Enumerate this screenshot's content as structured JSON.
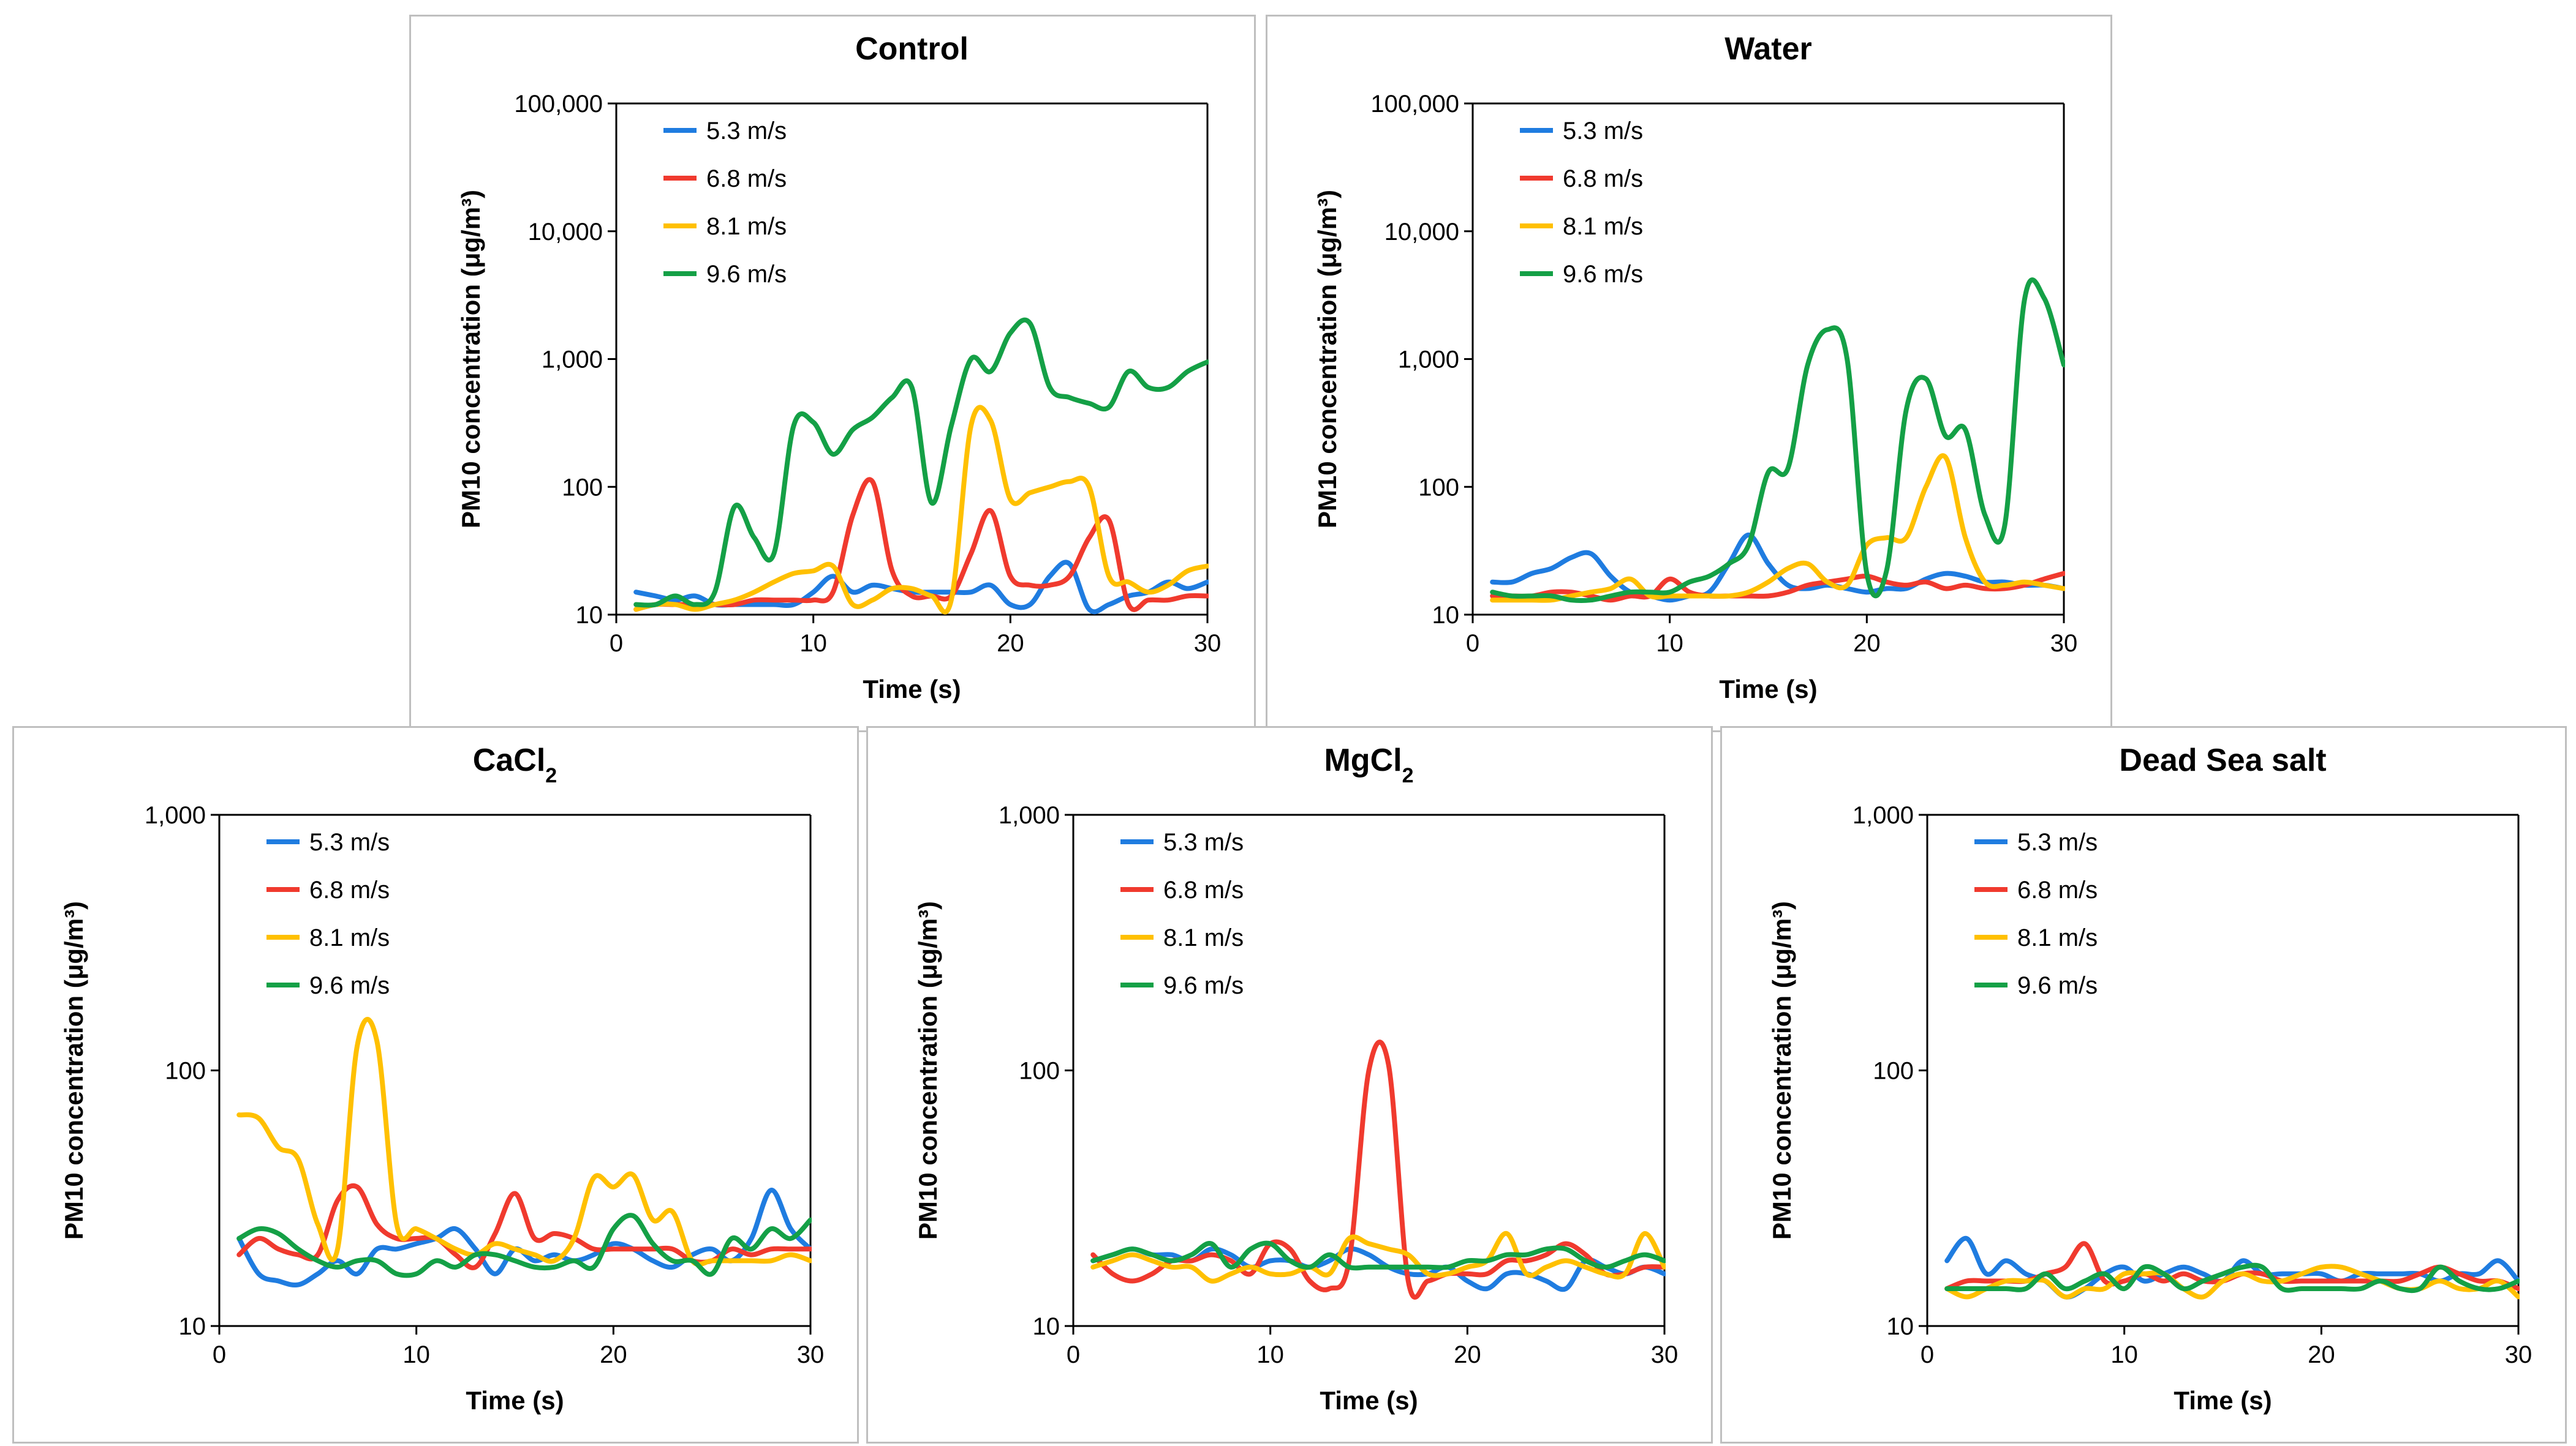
{
  "series_colors": {
    "5.3 m/s": "#1f7ce0",
    "6.8 m/s": "#f03a2e",
    "8.1 m/s": "#ffc000",
    "9.6 m/s": "#14a046"
  },
  "chart_data": [
    {
      "type": "line",
      "yscale": "log",
      "title": "Control",
      "xlabel": "Time (s)",
      "ylabel": "PM10 concentration (μg/m³)",
      "xlim": [
        0,
        30
      ],
      "ylim": [
        10,
        100000
      ],
      "xticks": [
        "0",
        "10",
        "20",
        "30"
      ],
      "yticks": [
        {
          "v": 10,
          "t": "10"
        },
        {
          "v": 100,
          "t": "100"
        },
        {
          "v": 1000,
          "t": "1,000"
        },
        {
          "v": 10000,
          "t": "10,000"
        },
        {
          "v": 100000,
          "t": "100,000"
        }
      ],
      "x": [
        1,
        2,
        3,
        4,
        5,
        6,
        7,
        8,
        9,
        10,
        11,
        12,
        13,
        14,
        15,
        16,
        17,
        18,
        19,
        20,
        21,
        22,
        23,
        24,
        25,
        26,
        27,
        28,
        29,
        30
      ],
      "series": [
        {
          "name": "5.3 m/s",
          "values": [
            15,
            14,
            13,
            14,
            12,
            12,
            12,
            12,
            12,
            15,
            20,
            15,
            17,
            16,
            15,
            15,
            15,
            15,
            17,
            12,
            12,
            20,
            25,
            11,
            12,
            14,
            15,
            18,
            16,
            18
          ]
        },
        {
          "name": "6.8 m/s",
          "values": [
            11,
            12,
            12,
            12,
            12,
            12,
            13,
            13,
            13,
            13,
            15,
            60,
            110,
            22,
            14,
            14,
            14,
            30,
            65,
            20,
            17,
            17,
            20,
            40,
            55,
            12,
            13,
            13,
            14,
            14
          ]
        },
        {
          "name": "8.1 m/s",
          "values": [
            11,
            12,
            12,
            11,
            12,
            13,
            15,
            18,
            21,
            22,
            24,
            12,
            13,
            16,
            16,
            14,
            13,
            300,
            330,
            80,
            90,
            100,
            110,
            100,
            20,
            18,
            15,
            17,
            22,
            24
          ]
        },
        {
          "name": "9.6 m/s",
          "values": [
            12,
            12,
            14,
            12,
            15,
            70,
            40,
            30,
            300,
            320,
            180,
            280,
            350,
            500,
            600,
            75,
            300,
            1000,
            800,
            1600,
            1900,
            600,
            500,
            450,
            420,
            800,
            600,
            600,
            800,
            950
          ]
        }
      ]
    },
    {
      "type": "line",
      "yscale": "log",
      "title": "Water",
      "xlabel": "Time (s)",
      "ylabel": "PM10 concentration (μg/m³)",
      "xlim": [
        0,
        30
      ],
      "ylim": [
        10,
        100000
      ],
      "xticks": [
        "0",
        "10",
        "20",
        "30"
      ],
      "yticks": [
        {
          "v": 10,
          "t": "10"
        },
        {
          "v": 100,
          "t": "100"
        },
        {
          "v": 1000,
          "t": "1,000"
        },
        {
          "v": 10000,
          "t": "10,000"
        },
        {
          "v": 100000,
          "t": "100,000"
        }
      ],
      "x": [
        1,
        2,
        3,
        4,
        5,
        6,
        7,
        8,
        9,
        10,
        11,
        12,
        13,
        14,
        15,
        16,
        17,
        18,
        19,
        20,
        21,
        22,
        23,
        24,
        25,
        26,
        27,
        28,
        29,
        30
      ],
      "series": [
        {
          "name": "5.3 m/s",
          "values": [
            18,
            18,
            21,
            23,
            28,
            30,
            20,
            15,
            14,
            13,
            14,
            15,
            25,
            42,
            25,
            17,
            16,
            17,
            16,
            15,
            16,
            16,
            19,
            21,
            20,
            18,
            18,
            17,
            17,
            16
          ]
        },
        {
          "name": "6.8 m/s",
          "values": [
            14,
            14,
            14,
            15,
            15,
            14,
            13,
            14,
            14,
            19,
            15,
            14,
            14,
            14,
            14,
            15,
            17,
            18,
            19,
            20,
            18,
            17,
            18,
            16,
            17,
            16,
            16,
            17,
            19,
            21
          ]
        },
        {
          "name": "8.1 m/s",
          "values": [
            13,
            13,
            13,
            13,
            14,
            15,
            16,
            19,
            14,
            14,
            14,
            14,
            14,
            15,
            18,
            23,
            25,
            18,
            17,
            35,
            40,
            40,
            100,
            170,
            40,
            18,
            17,
            18,
            17,
            16
          ]
        },
        {
          "name": "9.6 m/s",
          "values": [
            15,
            14,
            14,
            14,
            13,
            13,
            14,
            15,
            15,
            15,
            18,
            20,
            25,
            35,
            130,
            140,
            900,
            1700,
            1000,
            21,
            22,
            400,
            700,
            250,
            280,
            60,
            50,
            2900,
            3000,
            900
          ]
        }
      ]
    },
    {
      "type": "line",
      "yscale": "log",
      "title": "CaCl",
      "title_sub": "2",
      "xlabel": "Time (s)",
      "ylabel": "PM10 concentration (μg/m³)",
      "xlim": [
        0,
        30
      ],
      "ylim": [
        10,
        1000
      ],
      "xticks": [
        "0",
        "10",
        "20",
        "30"
      ],
      "yticks": [
        {
          "v": 10,
          "t": "10"
        },
        {
          "v": 100,
          "t": "100"
        },
        {
          "v": 1000,
          "t": "1,000"
        }
      ],
      "x": [
        1,
        2,
        3,
        4,
        5,
        6,
        7,
        8,
        9,
        10,
        11,
        12,
        13,
        14,
        15,
        16,
        17,
        18,
        19,
        20,
        21,
        22,
        23,
        24,
        25,
        26,
        27,
        28,
        29,
        30
      ],
      "series": [
        {
          "name": "5.3 m/s",
          "values": [
            22,
            16,
            15,
            14.5,
            16,
            18,
            16,
            20,
            20,
            21,
            22,
            24,
            20,
            16,
            20,
            18,
            19,
            18,
            19,
            21,
            20,
            18,
            17,
            19,
            20,
            18,
            22,
            34,
            24,
            20
          ]
        },
        {
          "name": "6.8 m/s",
          "values": [
            19,
            22,
            20,
            19,
            19,
            31,
            35,
            25,
            22,
            22,
            22,
            19,
            17,
            23,
            33,
            22,
            23,
            22,
            20,
            20,
            20,
            20,
            20,
            18,
            18,
            20,
            19,
            20,
            20,
            20
          ]
        },
        {
          "name": "8.1 m/s",
          "values": [
            67,
            65,
            50,
            45,
            25,
            20,
            125,
            130,
            25,
            24,
            22,
            20,
            19,
            21,
            20,
            19,
            18,
            22,
            38,
            35,
            39,
            26,
            28,
            18,
            18,
            18,
            18,
            18,
            19,
            18
          ]
        },
        {
          "name": "9.6 m/s",
          "values": [
            22,
            24,
            23,
            20,
            18,
            17,
            18,
            18,
            16,
            16,
            18,
            17,
            19,
            19,
            18,
            17,
            17,
            18,
            17,
            24,
            27,
            21,
            18,
            18,
            16,
            22,
            20,
            24,
            22,
            26
          ]
        }
      ]
    },
    {
      "type": "line",
      "yscale": "log",
      "title": "MgCl",
      "title_sub": "2",
      "xlabel": "Time (s)",
      "ylabel": "PM10 concentration (μg/m³)",
      "xlim": [
        0,
        30
      ],
      "ylim": [
        10,
        1000
      ],
      "xticks": [
        "0",
        "10",
        "20",
        "30"
      ],
      "yticks": [
        {
          "v": 10,
          "t": "10"
        },
        {
          "v": 100,
          "t": "100"
        },
        {
          "v": 1000,
          "t": "1,000"
        }
      ],
      "x": [
        1,
        2,
        3,
        4,
        5,
        6,
        7,
        8,
        9,
        10,
        11,
        12,
        13,
        14,
        15,
        16,
        17,
        18,
        19,
        20,
        21,
        22,
        23,
        24,
        25,
        26,
        27,
        28,
        29,
        30
      ],
      "series": [
        {
          "name": "5.3 m/s",
          "values": [
            18,
            19,
            20,
            19,
            19,
            18,
            20,
            19,
            17,
            18,
            18,
            17,
            18,
            20,
            19,
            17,
            16,
            16,
            17,
            15,
            14,
            16,
            16,
            15,
            14,
            18,
            17,
            16,
            17,
            16
          ]
        },
        {
          "name": "6.8 m/s",
          "values": [
            19,
            16,
            15,
            16,
            18,
            18,
            19,
            18,
            16,
            21,
            20,
            15,
            14,
            18,
            100,
            105,
            15,
            15,
            16,
            16,
            16,
            18,
            18,
            19,
            21,
            19,
            16,
            16,
            17,
            17
          ]
        },
        {
          "name": "8.1 m/s",
          "values": [
            17,
            18,
            19,
            18,
            17,
            17,
            15,
            16,
            17,
            16,
            16,
            17,
            16,
            22,
            21,
            20,
            19,
            16,
            16,
            17,
            18,
            23,
            16,
            17,
            18,
            17,
            16,
            16,
            23,
            17
          ]
        },
        {
          "name": "9.6 m/s",
          "values": [
            18,
            19,
            20,
            19,
            18,
            19,
            21,
            17,
            20,
            21,
            18,
            17,
            19,
            17,
            17,
            17,
            17,
            17,
            17,
            18,
            18,
            19,
            19,
            20,
            20,
            18,
            17,
            18,
            19,
            18
          ]
        }
      ]
    },
    {
      "type": "line",
      "yscale": "log",
      "title": "Dead Sea salt",
      "xlabel": "Time (s)",
      "ylabel": "PM10 concentration (μg/m³)",
      "xlim": [
        0,
        30
      ],
      "ylim": [
        10,
        1000
      ],
      "xticks": [
        "0",
        "10",
        "20",
        "30"
      ],
      "yticks": [
        {
          "v": 10,
          "t": "10"
        },
        {
          "v": 100,
          "t": "100"
        },
        {
          "v": 1000,
          "t": "1,000"
        }
      ],
      "x": [
        1,
        2,
        3,
        4,
        5,
        6,
        7,
        8,
        9,
        10,
        11,
        12,
        13,
        14,
        15,
        16,
        17,
        18,
        19,
        20,
        21,
        22,
        23,
        24,
        25,
        26,
        27,
        28,
        29,
        30
      ],
      "series": [
        {
          "name": "5.3 m/s",
          "values": [
            18,
            22,
            16,
            18,
            16,
            15,
            13,
            14,
            16,
            17,
            15,
            16,
            17,
            16,
            15,
            18,
            16,
            16,
            16,
            16,
            15,
            16,
            16,
            16,
            16,
            15,
            16,
            16,
            18,
            15
          ]
        },
        {
          "name": "6.8 m/s",
          "values": [
            14,
            15,
            15,
            15,
            15,
            16,
            17,
            21,
            15,
            15,
            16,
            15,
            16,
            15,
            15,
            16,
            16,
            15,
            15,
            15,
            15,
            15,
            15,
            15,
            16,
            17,
            16,
            15,
            15,
            14
          ]
        },
        {
          "name": "8.1 m/s",
          "values": [
            14,
            13,
            14,
            15,
            15,
            15,
            13,
            14,
            14,
            16,
            16,
            16,
            14,
            13,
            15,
            16,
            15,
            15,
            16,
            17,
            17,
            16,
            15,
            14,
            14,
            15,
            14,
            14,
            15,
            13
          ]
        },
        {
          "name": "9.6 m/s",
          "values": [
            14,
            14,
            14,
            14,
            14,
            16,
            14,
            15,
            16,
            14,
            17,
            16,
            14,
            15,
            16,
            17,
            17,
            14,
            14,
            14,
            14,
            14,
            15,
            14,
            14,
            17,
            15,
            14,
            14,
            15
          ]
        }
      ]
    }
  ]
}
